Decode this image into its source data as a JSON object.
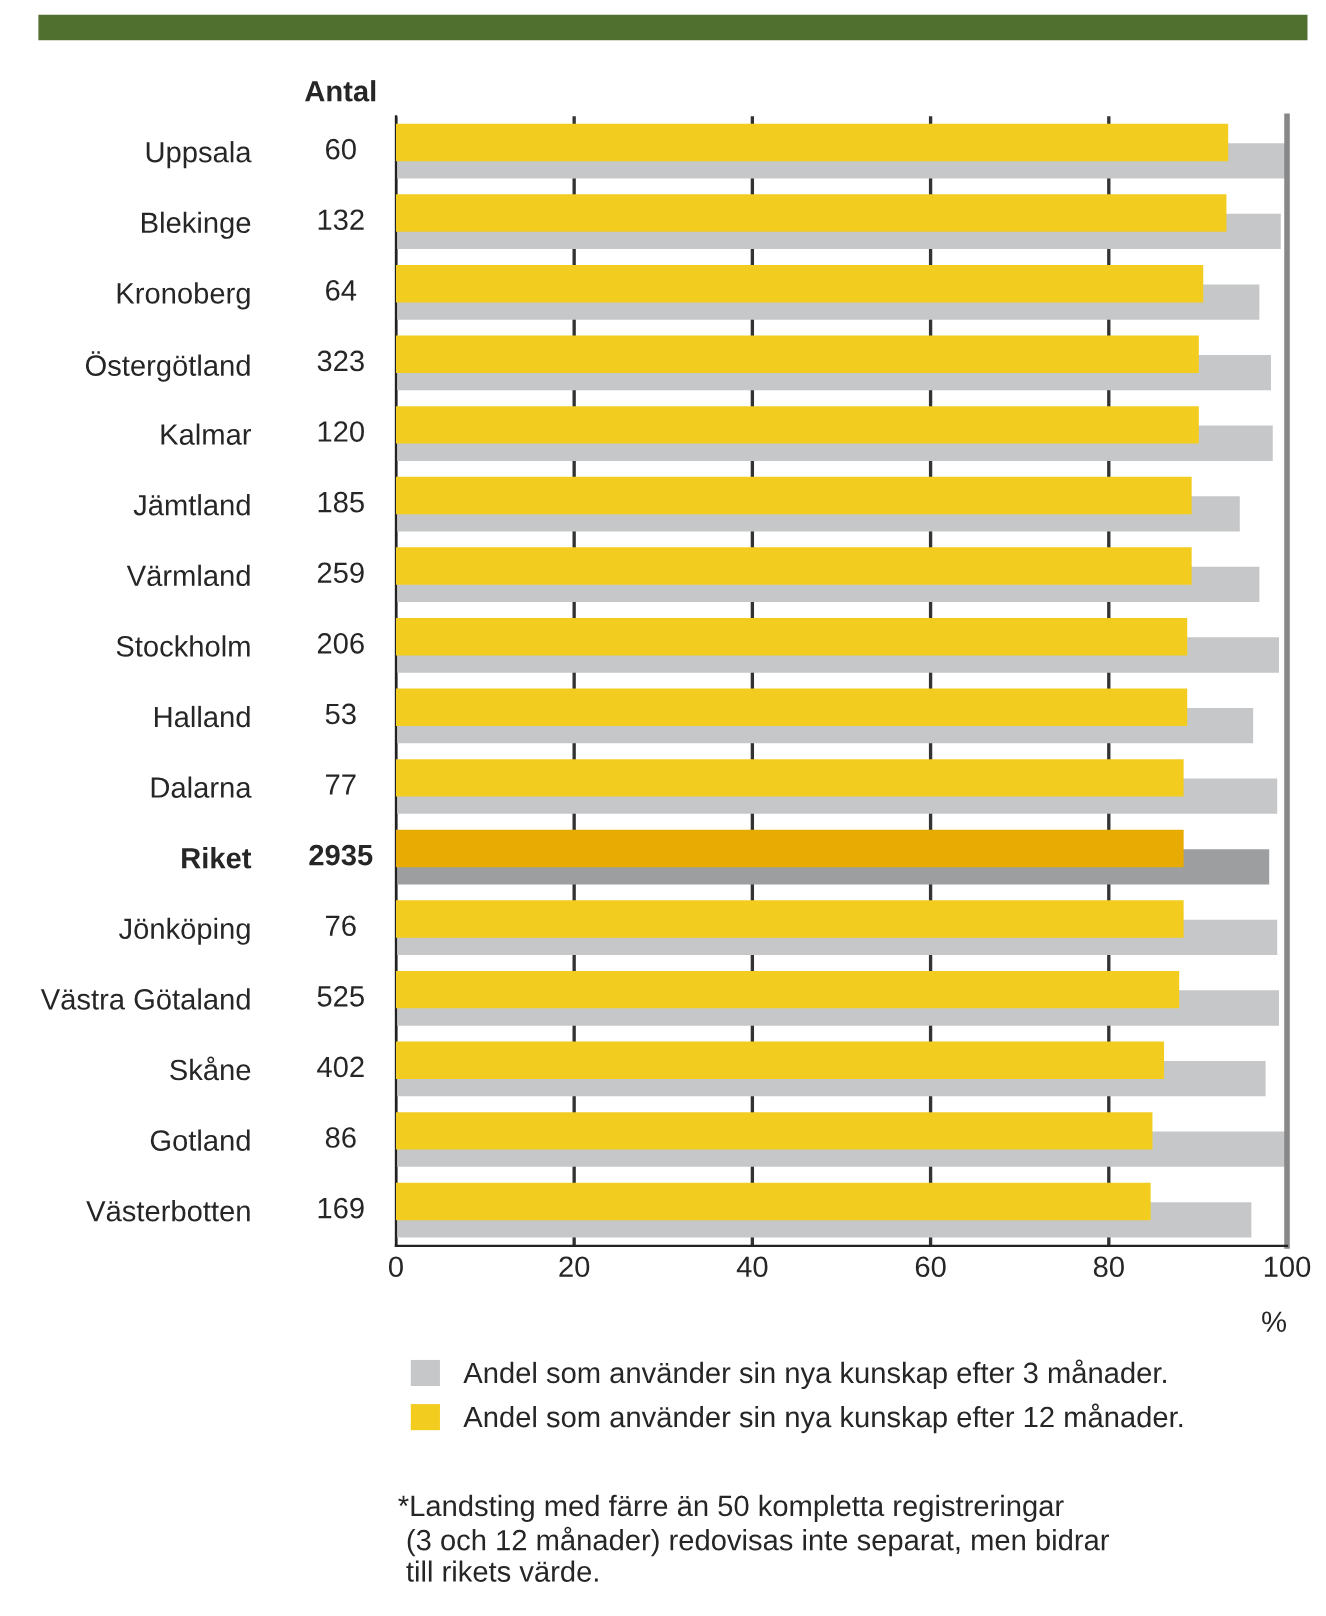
{
  "chart_data": {
    "type": "bar",
    "orientation": "horizontal",
    "categories": [
      "Uppsala",
      "Blekinge",
      "Kronoberg",
      "Östergötland",
      "Kalmar",
      "Jämtland",
      "Värmland",
      "Stockholm",
      "Halland",
      "Dalarna",
      "Riket",
      "Jönköping",
      "Västra Götaland",
      "Skåne",
      "Gotland",
      "Västerbotten"
    ],
    "series": [
      {
        "name": "Andel som använder sin nya kunskap efter 3 månader.",
        "color": "#c6c7c8",
        "colors": [
          "#c6c7c8",
          "#c6c7c8",
          "#c6c7c8",
          "#c6c7c8",
          "#c6c7c8",
          "#c6c7c8",
          "#c6c7c8",
          "#c6c7c8",
          "#c6c7c8",
          "#c6c7c8",
          "#9d9e9f",
          "#c6c7c8",
          "#c6c7c8",
          "#c6c7c8",
          "#c6c7c8",
          "#c6c7c8"
        ],
        "values": [
          100,
          99.3,
          96.9,
          98.2,
          98.4,
          94.7,
          96.9,
          99.1,
          96.2,
          98.9,
          98.0,
          98.9,
          99.1,
          97.6,
          100,
          96.0
        ]
      },
      {
        "name": "Andel som använder sin nya kunskap efter 12 månader.",
        "color": "#f2cd1f",
        "colors": [
          "#f2cd1f",
          "#f2cd1f",
          "#f2cd1f",
          "#f2cd1f",
          "#f2cd1f",
          "#f2cd1f",
          "#f2cd1f",
          "#f2cd1f",
          "#f2cd1f",
          "#f2cd1f",
          "#e8ab04",
          "#f2cd1f",
          "#f2cd1f",
          "#f2cd1f",
          "#f2cd1f",
          "#f2cd1f"
        ],
        "values": [
          93.4,
          93.2,
          90.6,
          90.1,
          90.1,
          89.3,
          89.3,
          88.8,
          88.8,
          88.4,
          88.4,
          88.4,
          87.9,
          86.2,
          84.9,
          84.7
        ]
      }
    ],
    "xlim": [
      0,
      100
    ],
    "xticks": [
      0,
      20,
      40,
      60,
      80,
      100
    ],
    "xlabel": "%",
    "grid": "x",
    "legend": "bottom",
    "annotations": [
      {
        "text": "Antal"
      },
      "60",
      "132",
      "64",
      "323",
      "120",
      "185",
      "259",
      "206",
      "53",
      "77",
      "2935",
      "76",
      "525",
      "402",
      "86",
      "169",
      "*Landsting med färre än 50 kompletta registreringar\n (3 och 12 månader) redovisas inte separat, men bidrar\n till rikets värde."
    ]
  }
}
